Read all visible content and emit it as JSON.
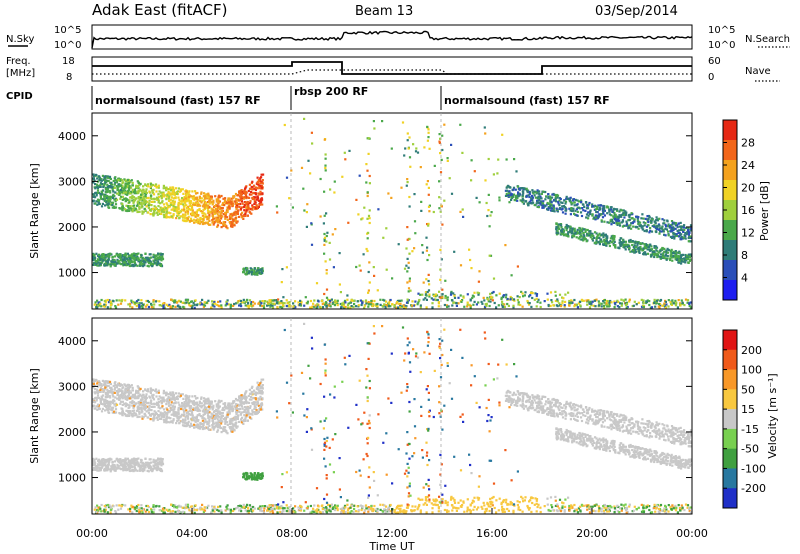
{
  "header": {
    "title": "Adak East (fitACF)",
    "beam": "Beam 13",
    "date": "03/Sep/2014"
  },
  "nsky_panel": {
    "label": "N.Sky",
    "right_label": "N.Search",
    "ticks_left": [
      "10^5",
      "10^0"
    ],
    "ticks_right": [
      "10^5",
      "10^0"
    ]
  },
  "freq_panel": {
    "label_line1": "Freq.",
    "label_line2": "[MHz]",
    "right_label": "Nave",
    "ticks_left": [
      "18",
      "8"
    ],
    "ticks_right": [
      "60",
      "0"
    ]
  },
  "cpid": {
    "label": "CPID",
    "segments": [
      {
        "label": "normalsound (fast) 157 RF"
      },
      {
        "label": "rbsp 200 RF"
      },
      {
        "label": "normalsound (fast) 157 RF"
      }
    ]
  },
  "chart_data": [
    {
      "type": "heatmap",
      "name": "power",
      "ylabel": "Slant Range [km]",
      "xlabel": "",
      "xlim": [
        "00:00",
        "24:00"
      ],
      "ylim": [
        200,
        4500
      ],
      "y_ticks": [
        "1000",
        "2000",
        "3000",
        "4000"
      ],
      "colorbar": {
        "label": "Power [dB]",
        "ticks": [
          "4",
          "8",
          "12",
          "16",
          "20",
          "24",
          "28"
        ],
        "colors": [
          "#1e1ef0",
          "#2b4fb8",
          "#2f7c78",
          "#4aa84a",
          "#9fcf3c",
          "#f0d224",
          "#f4a21e",
          "#f2661a",
          "#e62814"
        ]
      },
      "features": [
        {
          "band": "high",
          "t_start_h": 0.0,
          "t_end_h": 6.8,
          "range_start_km": 2900,
          "range_end_km": 2200,
          "power_db": 24
        },
        {
          "band": "low",
          "t_start_h": 0.0,
          "t_end_h": 2.8,
          "range_km": 1300,
          "power_db": 12
        },
        {
          "band": "patch",
          "t_start_h": 6.0,
          "t_end_h": 6.8,
          "range_km": 1050,
          "power_db": 12
        },
        {
          "band": "evening-1",
          "t_start_h": 16.5,
          "t_end_h": 24.0,
          "range_start_km": 2800,
          "range_end_km": 1900,
          "power_db": 8
        },
        {
          "band": "evening-2",
          "t_start_h": 18.5,
          "t_end_h": 24.0,
          "range_start_km": 2000,
          "range_end_km": 1250,
          "power_db": 10
        }
      ]
    },
    {
      "type": "heatmap",
      "name": "velocity",
      "ylabel": "Slant Range [km]",
      "xlabel": "Time UT",
      "xlim": [
        "00:00",
        "24:00"
      ],
      "ylim": [
        200,
        4500
      ],
      "y_ticks": [
        "1000",
        "2000",
        "3000",
        "4000"
      ],
      "x_ticks": [
        "00:00",
        "04:00",
        "08:00",
        "12:00",
        "16:00",
        "20:00",
        "00:00"
      ],
      "colorbar": {
        "label": "Velocity [m s⁻¹]",
        "ticks": [
          "200",
          "100",
          "50",
          "15",
          "-15",
          "-50",
          "-100",
          "-200"
        ],
        "colors": [
          "#2030c8",
          "#2878a0",
          "#40a040",
          "#78d050",
          "#c8c8c8",
          "#f8c840",
          "#f89828",
          "#f05a1a",
          "#e01414"
        ]
      }
    }
  ]
}
